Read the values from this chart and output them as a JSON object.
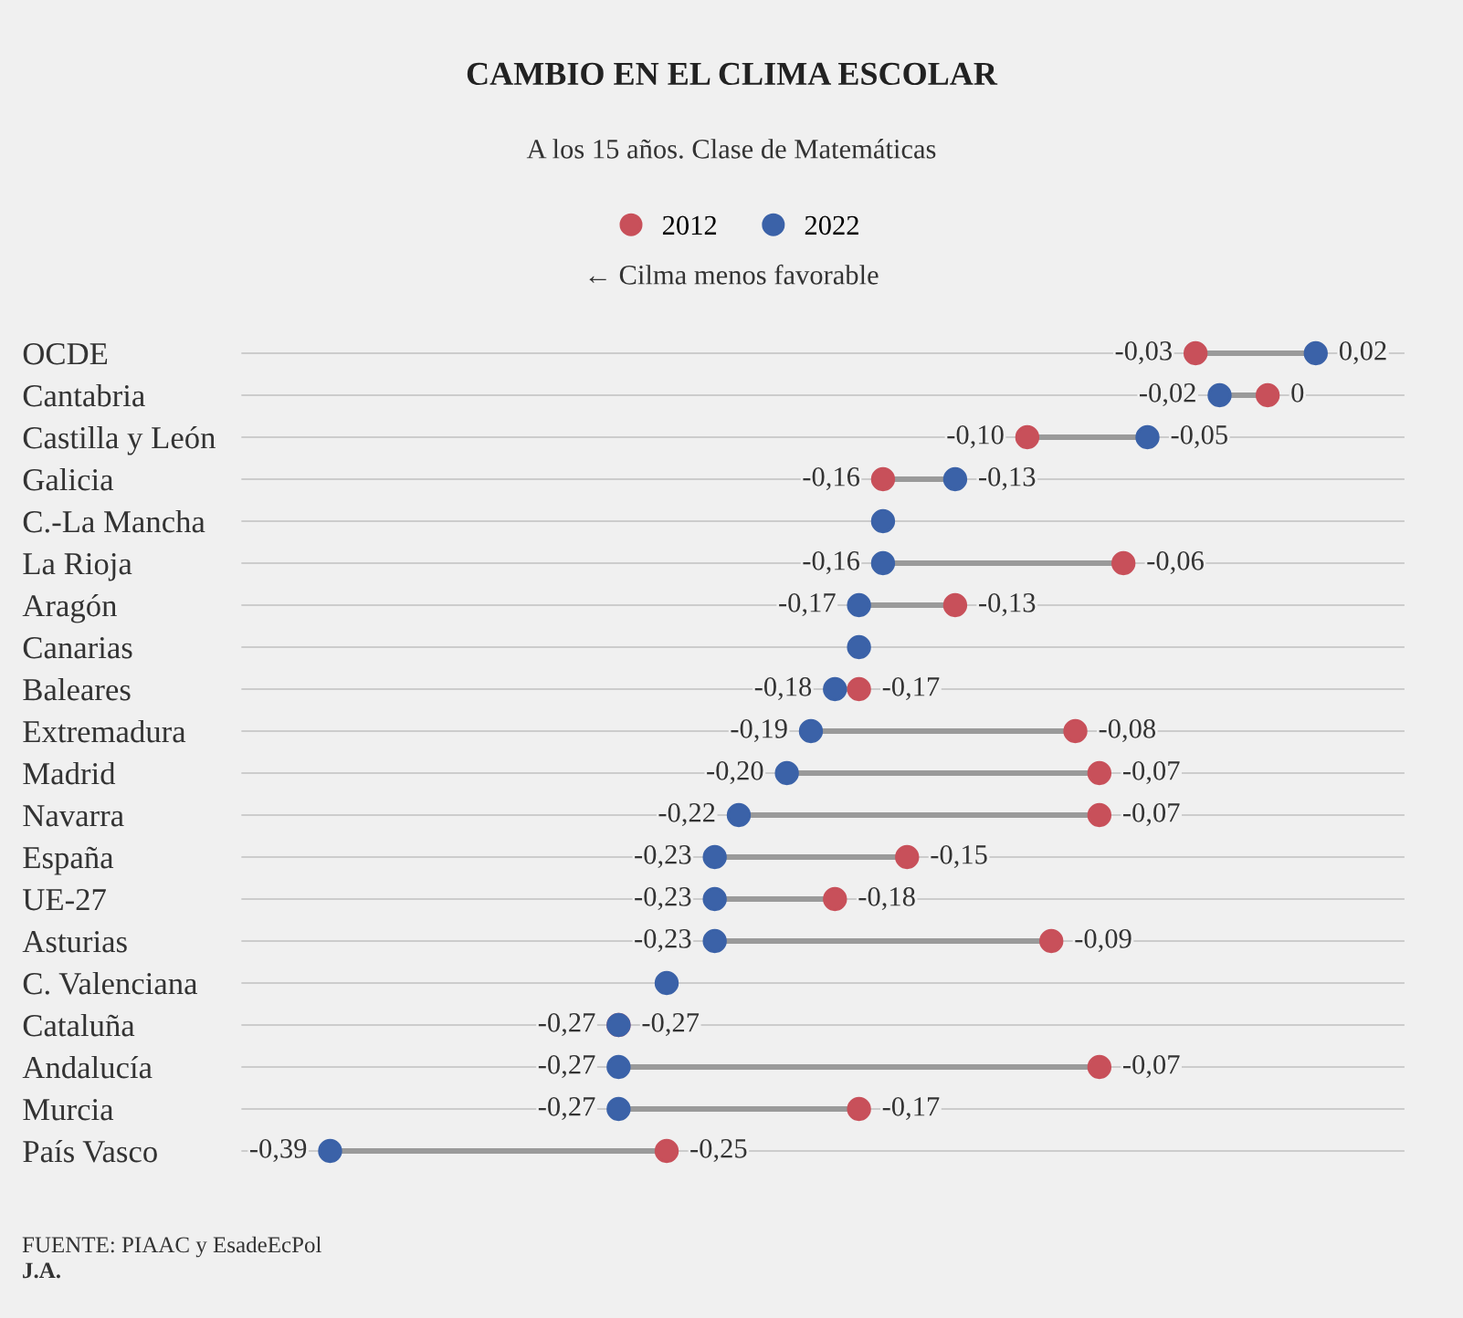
{
  "chart_data": {
    "type": "scatter",
    "orientation": "horizontal",
    "title": "CAMBIO EN EL CLIMA ESCOLAR",
    "subtitle": "A los 15 años. Clase de Matemáticas",
    "annotations": [
      "← Cilma menos favorable",
      "FUENTE: PIAAC y EsadeEcPol",
      "J.A."
    ],
    "categories": [
      "OCDE",
      "Cantabria",
      "Castilla y León",
      "Galicia",
      "C.-La Mancha",
      "La Rioja",
      "Aragón",
      "Canarias",
      "Baleares",
      "Extremadura",
      "Madrid",
      "Navarra",
      "España",
      "UE-27",
      "Asturias",
      "C. Valenciana",
      "Cataluña",
      "Andalucía",
      "Murcia",
      "País Vasco"
    ],
    "series": [
      {
        "name": "2012",
        "color": "#c8505a",
        "values": [
          -0.03,
          0,
          -0.1,
          -0.16,
          null,
          -0.06,
          -0.13,
          null,
          -0.17,
          -0.08,
          -0.07,
          -0.07,
          -0.15,
          -0.18,
          -0.09,
          null,
          -0.27,
          -0.07,
          -0.17,
          -0.25
        ],
        "value_labels": [
          "-0,03",
          "0",
          "-0,10",
          "-0,16",
          null,
          "-0,06",
          "-0,13",
          null,
          "-0,17",
          "-0,08",
          "-0,07",
          "-0,07",
          "-0,15",
          "-0,18",
          "-0,09",
          null,
          "-0,27",
          "-0,07",
          "-0,17",
          "-0,25"
        ]
      },
      {
        "name": "2022",
        "color": "#3b62a8",
        "values": [
          0.02,
          -0.02,
          -0.05,
          -0.13,
          -0.16,
          -0.16,
          -0.17,
          -0.17,
          -0.18,
          -0.19,
          -0.2,
          -0.22,
          -0.23,
          -0.23,
          -0.23,
          -0.25,
          -0.27,
          -0.27,
          -0.27,
          -0.39
        ],
        "value_labels": [
          "0,02",
          "-0,02",
          "-0,05",
          "-0,13",
          null,
          "-0,16",
          "-0,17",
          null,
          "-0,18",
          "-0,19",
          "-0,20",
          "-0,22",
          "-0,23",
          "-0,23",
          "-0,23",
          null,
          "-0,27",
          "-0,27",
          "-0,27",
          "-0,39"
        ]
      }
    ],
    "legend": "top",
    "grid": "y",
    "marker": "circle"
  }
}
